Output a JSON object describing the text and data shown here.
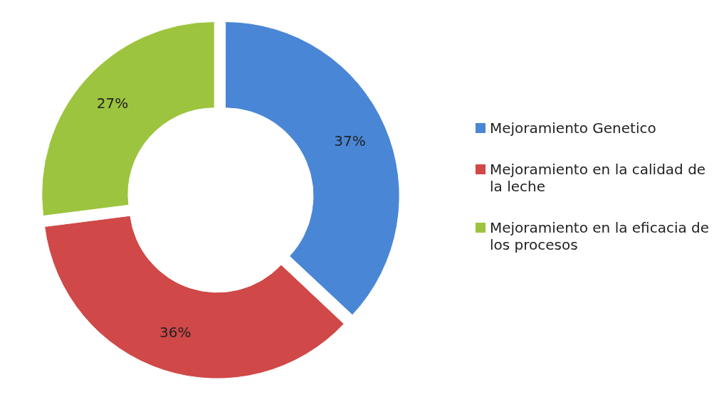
{
  "chart_data": {
    "type": "donut",
    "categories": [
      "Mejoramiento Genetico",
      "Mejoramiento en la calidad de la leche",
      "Mejoramiento en la eficacia de los procesos"
    ],
    "values": [
      37,
      36,
      27
    ],
    "colors": [
      "#4a86d6",
      "#d04848",
      "#9cc43e"
    ],
    "value_labels": [
      "37%",
      "36%",
      "27%"
    ],
    "legend": "right"
  }
}
